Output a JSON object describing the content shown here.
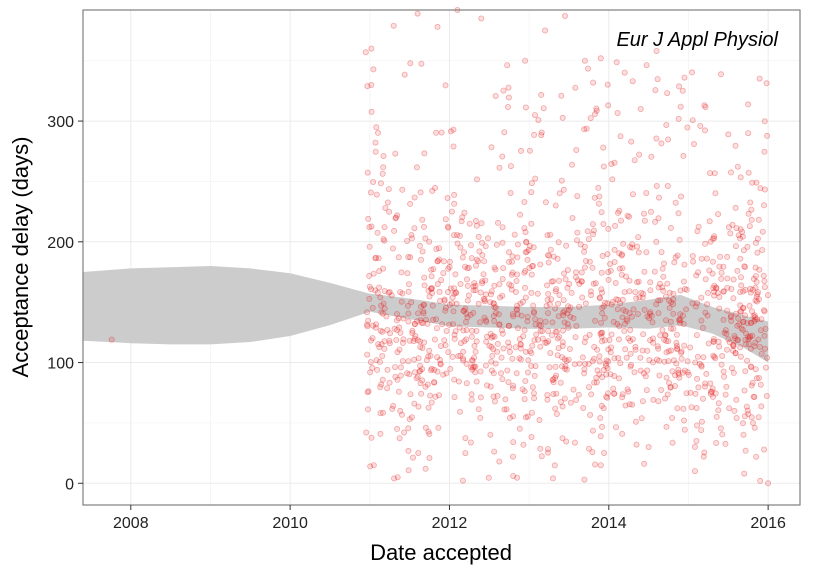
{
  "chart_data": {
    "type": "scatter",
    "title": "",
    "annotation": "Eur J Appl Physiol",
    "xlabel": "Date accepted",
    "ylabel": "Acceptance delay (days)",
    "xlim": [
      2007.4,
      2016.4
    ],
    "ylim": [
      -18,
      392
    ],
    "x_ticks": [
      2008,
      2010,
      2012,
      2014,
      2016
    ],
    "y_ticks": [
      0,
      100,
      200,
      300
    ],
    "grid": true,
    "legend": "none",
    "colors": {
      "points": "#e41a1c",
      "ribbon": "#cccccc",
      "grid": "#ebebeb",
      "panel_border": "#7f7f7f"
    },
    "smooth_band": {
      "x": [
        2007.4,
        2008.0,
        2008.5,
        2009.0,
        2009.5,
        2010.0,
        2010.5,
        2011.0,
        2011.5,
        2012.0,
        2012.5,
        2013.0,
        2013.5,
        2014.0,
        2014.5,
        2014.9,
        2015.3,
        2015.7,
        2016.0
      ],
      "lower": [
        118,
        116,
        115,
        115,
        117,
        122,
        131,
        142,
        136,
        130,
        129,
        128,
        128,
        129,
        128,
        131,
        124,
        112,
        100
      ],
      "upper": [
        175,
        178,
        179,
        180,
        178,
        174,
        166,
        157,
        153,
        148,
        147,
        146,
        146,
        148,
        152,
        156,
        146,
        139,
        134
      ]
    },
    "points": [
      [
        2007.76,
        119
      ],
      [
        2010.95,
        357
      ],
      [
        2010.97,
        329
      ],
      [
        2011.02,
        360
      ],
      [
        2010.98,
        219
      ],
      [
        2011.3,
        379
      ],
      [
        2011.6,
        389
      ],
      [
        2011.85,
        378
      ],
      [
        2012.1,
        392
      ],
      [
        2012.4,
        385
      ],
      [
        2012.95,
        350
      ],
      [
        2013.2,
        375
      ],
      [
        2013.45,
        387
      ],
      [
        2013.7,
        350
      ],
      [
        2013.9,
        352
      ],
      [
        2014.3,
        333
      ],
      [
        2014.6,
        358
      ],
      [
        2014.95,
        336
      ],
      [
        2015.2,
        313
      ],
      [
        2015.5,
        289
      ],
      [
        2015.75,
        290
      ],
      [
        2011.05,
        15
      ],
      [
        2011.35,
        5
      ],
      [
        2011.7,
        12
      ],
      [
        2012.2,
        25
      ],
      [
        2012.8,
        6
      ],
      [
        2013.3,
        4
      ],
      [
        2013.9,
        15
      ],
      [
        2014.5,
        30
      ],
      [
        2015.1,
        35
      ],
      [
        2015.7,
        8
      ],
      [
        2015.85,
        22
      ],
      [
        2015.9,
        2
      ],
      [
        2015.95,
        28
      ],
      [
        2016.0,
        0
      ]
    ]
  }
}
